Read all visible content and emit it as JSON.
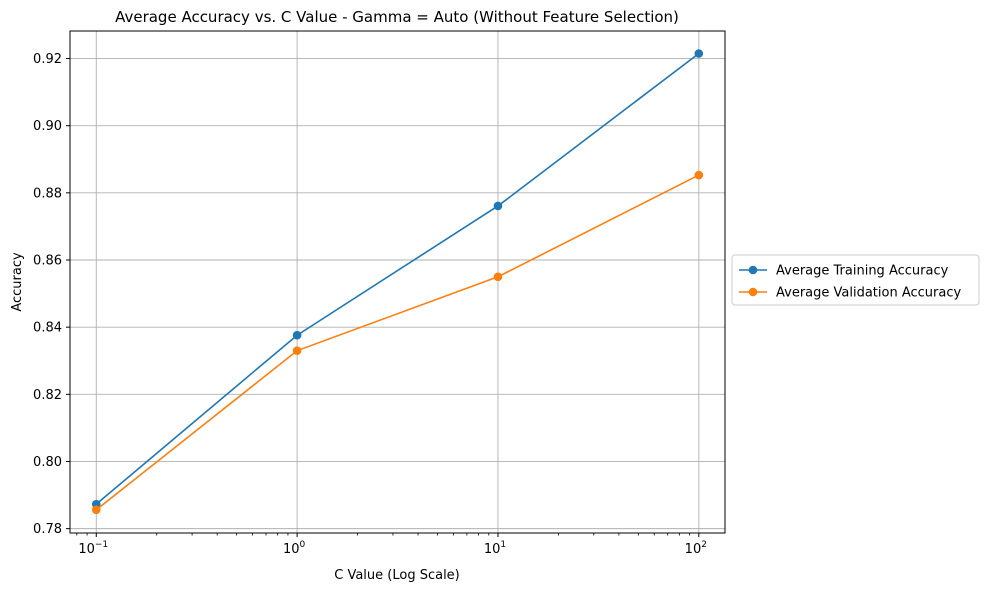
{
  "chart_data": {
    "type": "line",
    "title": "Average Accuracy vs. C Value - Gamma = Auto (Without Feature Selection)",
    "xlabel": "C Value (Log Scale)",
    "ylabel": "Accuracy",
    "x_scale": "log",
    "x": [
      0.1,
      1,
      10,
      100
    ],
    "x_tick_labels": [
      {
        "value": 0.1,
        "base": "10",
        "exp": "−1"
      },
      {
        "value": 1,
        "base": "10",
        "exp": "0"
      },
      {
        "value": 10,
        "base": "10",
        "exp": "1"
      },
      {
        "value": 100,
        "base": "10",
        "exp": "2"
      }
    ],
    "y_ticks": [
      0.78,
      0.8,
      0.82,
      0.84,
      0.86,
      0.88,
      0.9,
      0.92
    ],
    "y_tick_labels": [
      "0.78",
      "0.80",
      "0.82",
      "0.84",
      "0.86",
      "0.88",
      "0.90",
      "0.92"
    ],
    "xlim": [
      0.074,
      135
    ],
    "ylim": [
      0.7787,
      0.9282
    ],
    "grid": true,
    "legend_position": "right, outside plot",
    "series": [
      {
        "name": "Average Training Accuracy",
        "color": "#1f77b4",
        "marker": "circle",
        "values": [
          0.7873,
          0.8376,
          0.8761,
          0.9215
        ]
      },
      {
        "name": "Average Validation Accuracy",
        "color": "#ff7f0e",
        "marker": "circle",
        "values": [
          0.7856,
          0.833,
          0.855,
          0.8853
        ]
      }
    ]
  }
}
